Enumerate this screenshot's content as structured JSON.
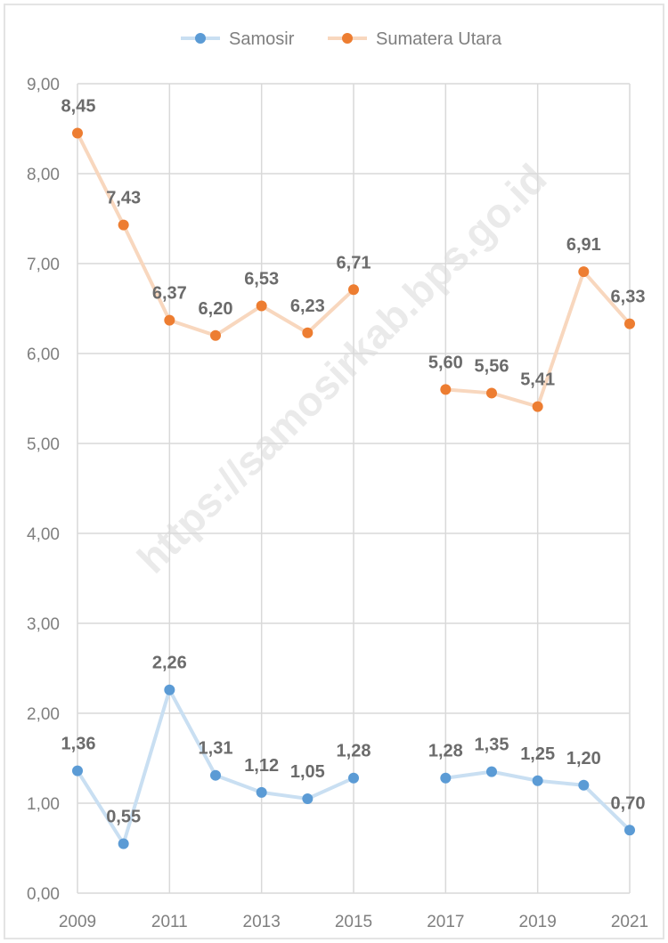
{
  "chart_data": {
    "type": "line",
    "x": [
      "2009",
      "2010",
      "2011",
      "2012",
      "2013",
      "2014",
      "2015",
      "2016",
      "2017",
      "2018",
      "2019",
      "2020",
      "2021"
    ],
    "x_tick_labels": [
      "2009",
      "2011",
      "2013",
      "2015",
      "2017",
      "2019",
      "2021"
    ],
    "ylim": [
      0,
      9
    ],
    "y_tick_labels": [
      "0,00",
      "1,00",
      "2,00",
      "3,00",
      "4,00",
      "5,00",
      "6,00",
      "7,00",
      "8,00",
      "9,00"
    ],
    "grid": true,
    "legend_position": "top",
    "series": [
      {
        "name": "Samosir",
        "color": "#5b9bd5",
        "line_color": "#c9dff2",
        "values": [
          1.36,
          0.55,
          2.26,
          1.31,
          1.12,
          1.05,
          1.28,
          null,
          1.28,
          1.35,
          1.25,
          1.2,
          0.7
        ],
        "labels": [
          "1,36",
          "0,55",
          "2,26",
          "1,31",
          "1,12",
          "1,05",
          "1,28",
          "",
          "1,28",
          "1,35",
          "1,25",
          "1,20",
          "0,70"
        ]
      },
      {
        "name": "Sumatera Utara",
        "color": "#ed7d31",
        "line_color": "#f8d7be",
        "values": [
          8.45,
          7.43,
          6.37,
          6.2,
          6.53,
          6.23,
          6.71,
          null,
          5.6,
          5.56,
          5.41,
          6.91,
          6.33
        ],
        "labels": [
          "8,45",
          "7,43",
          "6,37",
          "6,20",
          "6,53",
          "6,23",
          "6,71",
          "",
          "5,60",
          "5,56",
          "5,41",
          "6,91",
          "6,33"
        ]
      }
    ],
    "watermark": "https://samosirkab.bps.go.id"
  }
}
